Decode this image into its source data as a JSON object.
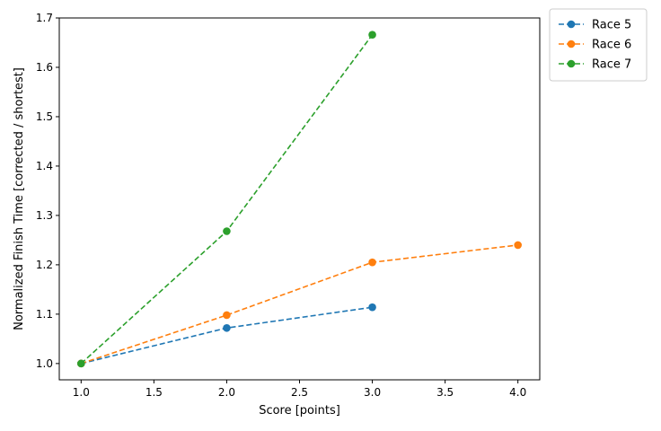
{
  "chart_data": {
    "type": "line",
    "xlabel": "Score [points]",
    "ylabel": "Normalized Finish Time [corrected / shortest]",
    "xlim": [
      0.85,
      4.15
    ],
    "ylim": [
      0.967,
      1.7
    ],
    "x_ticks": [
      1.0,
      1.5,
      2.0,
      2.5,
      3.0,
      3.5,
      4.0
    ],
    "y_ticks": [
      1.0,
      1.1,
      1.2,
      1.3,
      1.4,
      1.5,
      1.6,
      1.7
    ],
    "grid": false,
    "legend_position": "outside-top-right",
    "line_style": "dashed",
    "marker": "circle",
    "series": [
      {
        "name": "Race 5",
        "color": "#1f77b4",
        "x": [
          1,
          2,
          3
        ],
        "y": [
          1.0,
          1.072,
          1.114
        ]
      },
      {
        "name": "Race 6",
        "color": "#ff7f0e",
        "x": [
          1,
          2,
          3,
          4
        ],
        "y": [
          1.0,
          1.098,
          1.205,
          1.24
        ]
      },
      {
        "name": "Race 7",
        "color": "#2ca02c",
        "x": [
          1,
          2,
          3
        ],
        "y": [
          1.0,
          1.268,
          1.666
        ]
      }
    ]
  }
}
